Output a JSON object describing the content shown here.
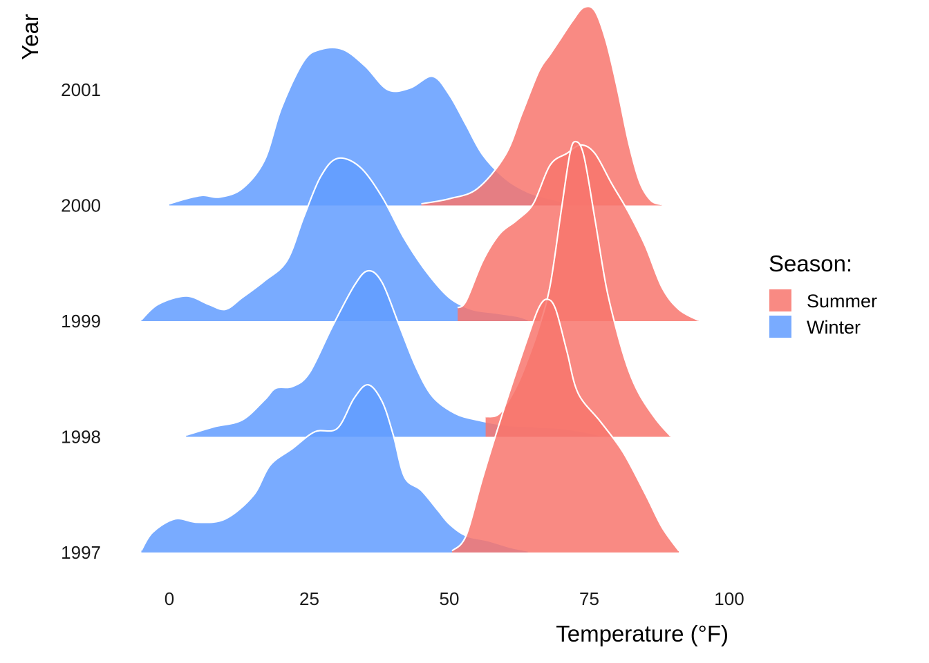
{
  "chart_data": {
    "type": "area",
    "subtype": "ridgeline",
    "title": "",
    "xlabel": "Temperature (°F)",
    "ylabel": "Year",
    "xlim": [
      -5,
      100
    ],
    "x_ticks": [
      0,
      25,
      50,
      75,
      100
    ],
    "grid": false,
    "legend_position": "right",
    "legend": {
      "title": "Season:",
      "entries": [
        {
          "label": "Summer",
          "color": "#F8766D"
        },
        {
          "label": "Winter",
          "color": "#619CFF"
        }
      ]
    },
    "categories": [
      "1997",
      "1998",
      "1999",
      "2000",
      "2001"
    ],
    "series": [
      {
        "name": "Winter",
        "color": "#619CFF",
        "ridges": [
          {
            "year": "1997",
            "x": [
              -5,
              -3,
              1,
              5,
              10,
              15,
              18,
              22,
              26,
              30,
              33,
              35.5,
              38,
              40,
              42,
              45,
              48,
              50,
              53,
              57,
              61,
              64
            ],
            "density": [
              0.012,
              0.12,
              0.2,
              0.18,
              0.2,
              0.34,
              0.52,
              0.62,
              0.72,
              0.74,
              0.92,
              1.0,
              0.9,
              0.7,
              0.45,
              0.37,
              0.25,
              0.17,
              0.1,
              0.07,
              0.03,
              0.01
            ]
          },
          {
            "year": "1998",
            "x": [
              3,
              8,
              13,
              17,
              19,
              22,
              25,
              29,
              33,
              35.5,
              38,
              41,
              44,
              47,
              51,
              55,
              60,
              65,
              70,
              74,
              77
            ],
            "density": [
              0.01,
              0.06,
              0.1,
              0.22,
              0.29,
              0.3,
              0.38,
              0.65,
              0.9,
              0.99,
              0.92,
              0.67,
              0.42,
              0.24,
              0.14,
              0.1,
              0.07,
              0.06,
              0.05,
              0.03,
              0.008
            ]
          },
          {
            "year": "1999",
            "x": [
              -5,
              -2,
              3,
              7,
              10,
              13,
              17,
              21,
              24,
              27,
              30,
              34,
              38,
              42,
              46,
              50,
              54,
              58,
              62,
              64
            ],
            "density": [
              0.008,
              0.1,
              0.15,
              0.1,
              0.07,
              0.14,
              0.24,
              0.36,
              0.62,
              0.86,
              0.97,
              0.92,
              0.74,
              0.49,
              0.29,
              0.14,
              0.07,
              0.05,
              0.03,
              0.01
            ]
          },
          {
            "year": "2000",
            "x": [
              0,
              3,
              6,
              9,
              13,
              17,
              20,
              24,
              27,
              31,
              35,
              39,
              43,
              47,
              50,
              53,
              56,
              60,
              64,
              68,
              72
            ],
            "density": [
              0.01,
              0.04,
              0.06,
              0.05,
              0.1,
              0.27,
              0.58,
              0.86,
              0.93,
              0.93,
              0.83,
              0.69,
              0.7,
              0.77,
              0.66,
              0.48,
              0.3,
              0.16,
              0.08,
              0.04,
              0.01
            ]
          }
        ]
      },
      {
        "name": "Summer",
        "color": "#F8766D",
        "ridges": [
          {
            "year": "1997",
            "x": [
              50.5,
              53,
              56,
              60,
              64,
              66,
              67.5,
              69,
              71,
              73,
              77,
              81,
              85,
              88,
              91
            ],
            "density": [
              0.01,
              0.1,
              0.45,
              0.88,
              1.28,
              1.46,
              1.51,
              1.45,
              1.2,
              0.95,
              0.78,
              0.6,
              0.35,
              0.15,
              0.01
            ]
          },
          {
            "year": "1998",
            "x": [
              56.5,
              59,
              62,
              64,
              66,
              68,
              70,
              71.5,
              72.5,
              74,
              76,
              78,
              80,
              82,
              84,
              87,
              89.5
            ],
            "density": [
              0.12,
              0.14,
              0.3,
              0.46,
              0.65,
              0.9,
              1.35,
              1.68,
              1.76,
              1.68,
              1.3,
              0.9,
              0.62,
              0.4,
              0.25,
              0.1,
              0.005
            ]
          },
          {
            "year": "1999",
            "x": [
              51.5,
              53,
              56,
              59,
              62,
              65,
              68,
              71,
              73.5,
              76,
              79,
              82,
              85,
              88,
              91,
              94.5
            ],
            "density": [
              0.08,
              0.12,
              0.36,
              0.52,
              0.6,
              0.7,
              0.93,
              1.0,
              1.05,
              1.0,
              0.82,
              0.65,
              0.45,
              0.2,
              0.07,
              0.005
            ]
          },
          {
            "year": "2000",
            "x": [
              45,
              50,
              55,
              60,
              63,
              66,
              68,
              70,
              72,
              74,
              76,
              78,
              80,
              82,
              84,
              86,
              88
            ],
            "density": [
              0.01,
              0.04,
              0.1,
              0.3,
              0.55,
              0.8,
              0.9,
              1.0,
              1.1,
              1.18,
              1.16,
              0.98,
              0.7,
              0.38,
              0.14,
              0.03,
              0.005
            ]
          }
        ]
      }
    ]
  }
}
